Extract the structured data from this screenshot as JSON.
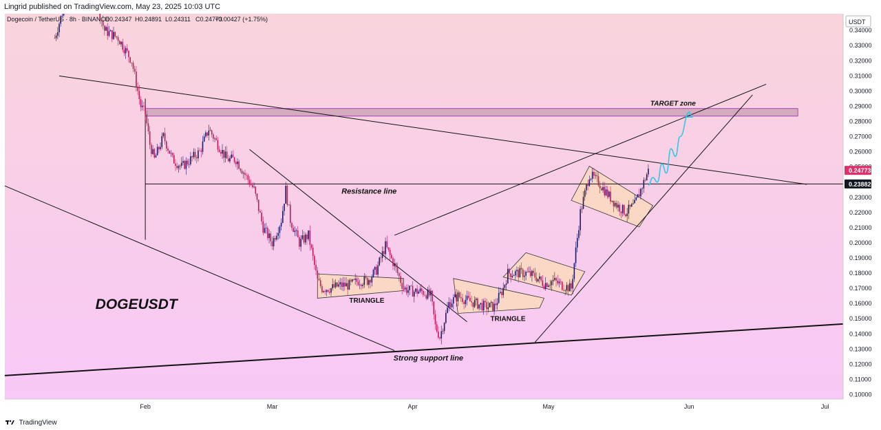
{
  "header": {
    "publisher": "Lingrid published on TradingView.com, May 23, 2025 10:03 UTC"
  },
  "footer": {
    "brand": "TradingView"
  },
  "symbol_line": "Dogecoin / TetherUS · 8h · BINANCE",
  "ohlc": {
    "o": "O0.24347",
    "h": "H0.24891",
    "l": "L0.24311",
    "c": "C0.24773",
    "chg": "+0.00427 (+1.75%)"
  },
  "currency": "USDT",
  "colors": {
    "bg_top": "#f9d4dc",
    "bg_bottom": "#f8c8f6",
    "up": "#1a1a66",
    "down": "#c2185b",
    "zone": "#c9a0b4",
    "pattern": "#fcd9be",
    "path": "#30c8e8",
    "price_tag": "#e0306a"
  },
  "chart_data": {
    "type": "line",
    "title": "DOGEUSDT",
    "xlabel": "",
    "ylabel": "",
    "x_ticks": [
      "Feb",
      "Mar",
      "Apr",
      "May",
      "Jun",
      "Jul"
    ],
    "y_ticks": [
      "0.34000",
      "0.33000",
      "0.32000",
      "0.31000",
      "0.30000",
      "0.29000",
      "0.28000",
      "0.27000",
      "0.26000",
      "0.25000",
      "0.24000",
      "0.23000",
      "0.22000",
      "0.21000",
      "0.20000",
      "0.19000",
      "0.18000",
      "0.17000",
      "0.16000",
      "0.15000",
      "0.14000",
      "0.13000",
      "0.12000",
      "0.11000",
      "0.10000"
    ],
    "ylim": [
      0.0975,
      0.3505
    ],
    "series": [
      {
        "values": [
          [
            "2025-01-12",
            0.335
          ],
          [
            "2025-01-14",
            0.355
          ],
          [
            "2025-01-17",
            0.38
          ],
          [
            "2025-01-20",
            0.37
          ],
          [
            "2025-01-23",
            0.34
          ],
          [
            "2025-01-26",
            0.335
          ],
          [
            "2025-01-29",
            0.32
          ],
          [
            "2025-01-31",
            0.29
          ],
          [
            "2025-02-01",
            0.285
          ],
          [
            "2025-02-02",
            0.265
          ],
          [
            "2025-02-03",
            0.255
          ],
          [
            "2025-02-05",
            0.27
          ],
          [
            "2025-02-07",
            0.255
          ],
          [
            "2025-02-09",
            0.25
          ],
          [
            "2025-02-11",
            0.255
          ],
          [
            "2025-02-13",
            0.26
          ],
          [
            "2025-02-15",
            0.275
          ],
          [
            "2025-02-17",
            0.265
          ],
          [
            "2025-02-19",
            0.255
          ],
          [
            "2025-02-21",
            0.255
          ],
          [
            "2025-02-23",
            0.245
          ],
          [
            "2025-02-25",
            0.235
          ],
          [
            "2025-02-27",
            0.21
          ],
          [
            "2025-03-01",
            0.2
          ],
          [
            "2025-03-03",
            0.215
          ],
          [
            "2025-03-04",
            0.235
          ],
          [
            "2025-03-05",
            0.215
          ],
          [
            "2025-03-07",
            0.2
          ],
          [
            "2025-03-09",
            0.205
          ],
          [
            "2025-03-11",
            0.175
          ],
          [
            "2025-03-12",
            0.17
          ],
          [
            "2025-03-14",
            0.17
          ],
          [
            "2025-03-16",
            0.172
          ],
          [
            "2025-03-18",
            0.172
          ],
          [
            "2025-03-20",
            0.175
          ],
          [
            "2025-03-22",
            0.175
          ],
          [
            "2025-03-24",
            0.182
          ],
          [
            "2025-03-26",
            0.198
          ],
          [
            "2025-03-28",
            0.185
          ],
          [
            "2025-03-30",
            0.17
          ],
          [
            "2025-04-01",
            0.168
          ],
          [
            "2025-04-03",
            0.168
          ],
          [
            "2025-04-05",
            0.165
          ],
          [
            "2025-04-06",
            0.145
          ],
          [
            "2025-04-07",
            0.138
          ],
          [
            "2025-04-09",
            0.16
          ],
          [
            "2025-04-11",
            0.165
          ],
          [
            "2025-04-13",
            0.162
          ],
          [
            "2025-04-15",
            0.16
          ],
          [
            "2025-04-17",
            0.158
          ],
          [
            "2025-04-19",
            0.158
          ],
          [
            "2025-04-21",
            0.17
          ],
          [
            "2025-04-22",
            0.18
          ],
          [
            "2025-04-24",
            0.18
          ],
          [
            "2025-04-26",
            0.18
          ],
          [
            "2025-04-28",
            0.178
          ],
          [
            "2025-04-30",
            0.173
          ],
          [
            "2025-05-02",
            0.175
          ],
          [
            "2025-05-04",
            0.172
          ],
          [
            "2025-05-06",
            0.17
          ],
          [
            "2025-05-07",
            0.195
          ],
          [
            "2025-05-08",
            0.22
          ],
          [
            "2025-05-10",
            0.245
          ],
          [
            "2025-05-12",
            0.24
          ],
          [
            "2025-05-14",
            0.232
          ],
          [
            "2025-05-16",
            0.225
          ],
          [
            "2025-05-18",
            0.22
          ],
          [
            "2025-05-20",
            0.225
          ],
          [
            "2025-05-22",
            0.24
          ],
          [
            "2025-05-23",
            0.2477
          ]
        ]
      }
    ],
    "resistance_level": 0.23882,
    "last_price": 0.24773,
    "target_zone": [
      0.2835,
      0.2885
    ],
    "annotations": [
      "TARGET zone",
      "Resistance line",
      "Strong support line",
      "TRIANGLE",
      "TRIANGLE"
    ],
    "price_labels": [
      "0.24773",
      "0.23882"
    ],
    "trendlines": [
      {
        "name": "descending-resistance",
        "points": [
          [
            "2025-01-13",
            0.31
          ],
          [
            "2025-06-27",
            0.2385
          ]
        ]
      },
      {
        "name": "strong-support",
        "points": [
          [
            "2025-01-01",
            0.1125
          ],
          [
            "2025-07-05",
            0.1465
          ]
        ]
      },
      {
        "name": "channel-lower",
        "points": [
          [
            "2025-01-01",
            0.2375
          ],
          [
            "2025-03-28",
            0.129
          ]
        ]
      },
      {
        "name": "channel-upper",
        "points": [
          [
            "2025-02-24",
            0.2615
          ],
          [
            "2025-04-13",
            0.148
          ]
        ]
      },
      {
        "name": "rising-upper",
        "points": [
          [
            "2025-03-28",
            0.205
          ],
          [
            "2025-06-18",
            0.3045
          ]
        ]
      },
      {
        "name": "rising-lower",
        "points": [
          [
            "2025-04-28",
            0.1345
          ],
          [
            "2025-06-15",
            0.2975
          ]
        ]
      },
      {
        "name": "horizontal-level",
        "points": [
          [
            "2025-02-01",
            0.23882
          ],
          [
            "2025-07-05",
            0.23882
          ]
        ]
      },
      {
        "name": "spike-marker",
        "points": [
          [
            "2025-02-01",
            0.202
          ],
          [
            "2025-02-01",
            0.295
          ]
        ]
      }
    ],
    "patterns": [
      {
        "name": "triangle-1",
        "points": [
          [
            "2025-03-11",
            0.1795
          ],
          [
            "2025-03-30",
            0.1765
          ],
          [
            "2025-03-30",
            0.1685
          ],
          [
            "2025-03-11",
            0.1635
          ]
        ]
      },
      {
        "name": "triangle-2",
        "points": [
          [
            "2025-04-10",
            0.1765
          ],
          [
            "2025-04-30",
            0.1635
          ],
          [
            "2025-04-29",
            0.157
          ],
          [
            "2025-04-11",
            0.1535
          ]
        ]
      },
      {
        "name": "flag-1",
        "points": [
          [
            "2025-04-26",
            0.1935
          ],
          [
            "2025-05-09",
            0.181
          ],
          [
            "2025-05-06",
            0.1655
          ],
          [
            "2025-04-21",
            0.1775
          ]
        ]
      },
      {
        "name": "flag-2",
        "points": [
          [
            "2025-05-10",
            0.2505
          ],
          [
            "2025-05-24",
            0.2245
          ],
          [
            "2025-05-21",
            0.2105
          ],
          [
            "2025-05-06",
            0.228
          ]
        ]
      }
    ],
    "projected_path": [
      [
        "2025-05-23",
        0.238
      ],
      [
        "2025-05-24",
        0.243
      ],
      [
        "2025-05-25",
        0.24
      ],
      [
        "2025-05-26",
        0.252
      ],
      [
        "2025-05-27",
        0.246
      ],
      [
        "2025-05-28",
        0.262
      ],
      [
        "2025-05-29",
        0.257
      ],
      [
        "2025-05-30",
        0.27
      ],
      [
        "2025-06-01",
        0.286
      ]
    ]
  }
}
